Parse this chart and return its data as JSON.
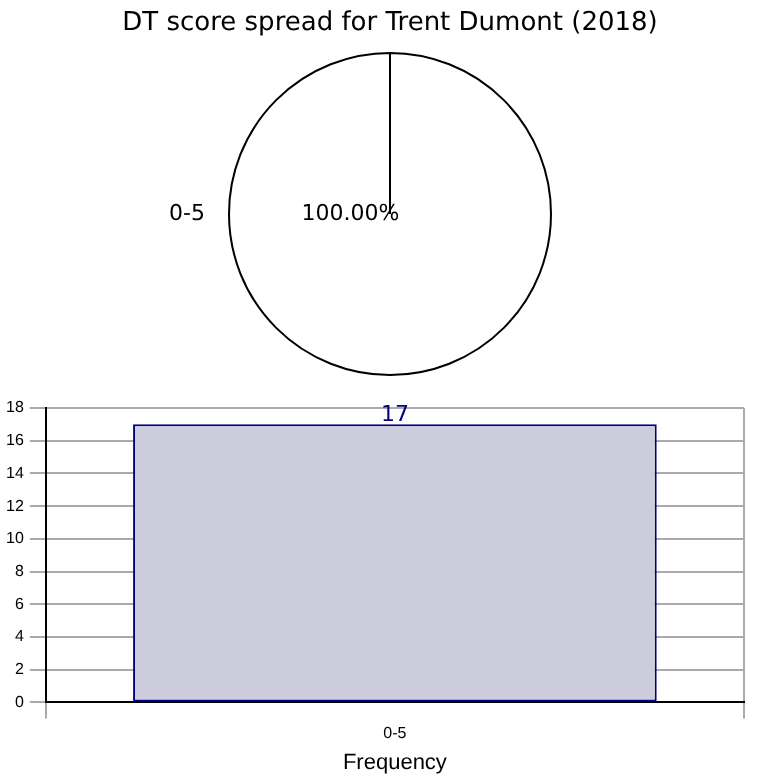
{
  "chart_data": [
    {
      "type": "pie",
      "title": "DT score spread for Trent Dumont (2018)",
      "categories": [
        "0-5"
      ],
      "values": [
        100
      ],
      "colors": [
        "#ffffff"
      ],
      "value_labels": [
        "100.00%"
      ]
    },
    {
      "type": "bar",
      "categories": [
        "0-5"
      ],
      "values": [
        17
      ],
      "color": "#ccccdd",
      "ylim": [
        0,
        18
      ],
      "yticks": [
        0,
        2,
        4,
        6,
        8,
        10,
        12,
        14,
        16,
        18
      ],
      "grid": true,
      "data_labels": true,
      "xlabel": "Frequency"
    }
  ]
}
